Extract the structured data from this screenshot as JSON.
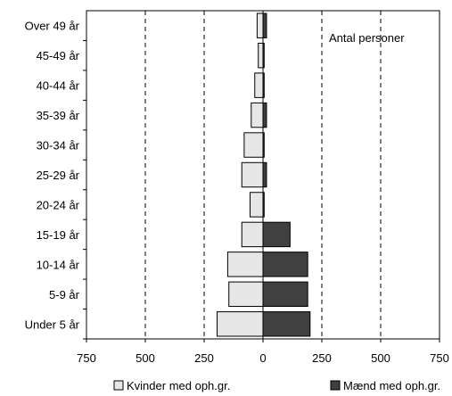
{
  "chart_data": {
    "type": "bar",
    "orientation": "horizontal-butterfly",
    "categories": [
      "Under 5 år",
      "5-9 år",
      "10-14 år",
      "15-19 år",
      "20-24 år",
      "25-29 år",
      "30-34 år",
      "35-39 år",
      "40-44 år",
      "45-49 år",
      "Over 49 år"
    ],
    "series": [
      {
        "name": "Kvinder med oph.gr.",
        "side": "left",
        "color": "#e6e6e6",
        "values": [
          195,
          145,
          150,
          90,
          55,
          90,
          80,
          50,
          35,
          20,
          25
        ]
      },
      {
        "name": "Mænd med oph.gr.",
        "side": "right",
        "color": "#404040",
        "values": [
          200,
          190,
          190,
          115,
          5,
          15,
          5,
          15,
          5,
          5,
          15
        ]
      }
    ],
    "x_ticks": [
      "750",
      "500",
      "250",
      "0",
      "250",
      "500",
      "750"
    ],
    "xlim": [
      -750,
      750
    ],
    "annotation": "Antal personer",
    "legend_placement": "bottom",
    "grid": "vertical-dashed"
  }
}
